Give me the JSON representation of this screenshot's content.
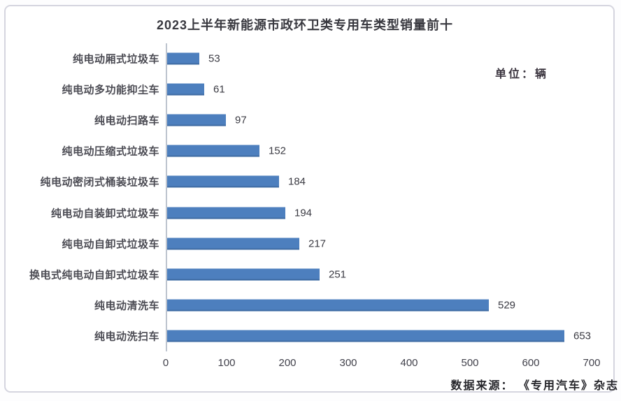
{
  "chart_data": {
    "type": "bar",
    "orientation": "horizontal",
    "title": "2023上半年新能源市政环卫类专用车类型销量前十",
    "unit_label": "单位：辆",
    "categories": [
      "纯电动厢式垃圾车",
      "纯电动多功能抑尘车",
      "纯电动扫路车",
      "纯电动压缩式垃圾车",
      "纯电动密闭式桶装垃圾车",
      "纯电动自装卸式垃圾车",
      "纯电动自卸式垃圾车",
      "换电式纯电动自卸式垃圾车",
      "纯电动清洗车",
      "纯电动洗扫车"
    ],
    "values": [
      53,
      61,
      97,
      152,
      184,
      194,
      217,
      251,
      529,
      653
    ],
    "xlim": [
      0,
      700
    ],
    "x_ticks": [
      0,
      100,
      200,
      300,
      400,
      500,
      600,
      700
    ],
    "data_labels": true,
    "grid": false,
    "legend": false,
    "bar_color": "#4d7fbe",
    "axis_line_color": "#bdc4cf",
    "source": "数据来源： 《专用汽车》杂志"
  }
}
